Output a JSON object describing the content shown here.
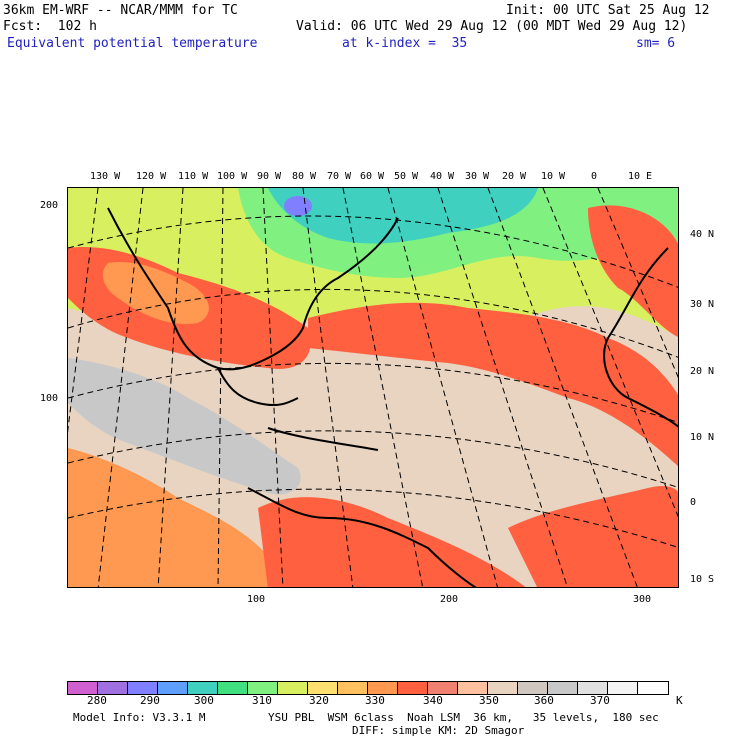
{
  "header": {
    "model_title": "36km EM-WRF -- NCAR/MMM for TC",
    "init": "Init: 00 UTC Sat 25 Aug 12",
    "forecast": "Fcst:  102 h",
    "valid": "Valid: 06 UTC Wed 29 Aug 12 (00 MDT Wed 29 Aug 12)",
    "field": "Equivalent potential temperature",
    "level": "at k-index =  35",
    "smoothing": "sm= 6"
  },
  "map": {
    "lon_labels": [
      "130 W",
      "120 W",
      "110 W",
      "100 W",
      "90 W",
      "80 W",
      "70 W",
      "60 W",
      "50 W",
      "40 W",
      "30 W",
      "20 W",
      "10 W",
      "0",
      "10 E"
    ],
    "lat_labels": [
      "40 N",
      "30 N",
      "20 N",
      "10 N",
      "0",
      "10 S"
    ],
    "y_grid_labels": [
      "200",
      "100"
    ],
    "x_grid_labels": [
      "100",
      "200",
      "300"
    ]
  },
  "colorbar": {
    "labels": [
      "280",
      "290",
      "300",
      "310",
      "320",
      "330",
      "340",
      "350",
      "360",
      "370"
    ],
    "unit": "K",
    "colors": [
      "#d060d0",
      "#a070e0",
      "#7f7fff",
      "#5fa0ff",
      "#40d0c0",
      "#40e080",
      "#80f080",
      "#d8f060",
      "#ffe070",
      "#ffc060",
      "#ff9850",
      "#ff6040",
      "#f08070",
      "#ffc0a0",
      "#e8d4c0",
      "#d0c8c0",
      "#c8c8c8",
      "#e0e0e0",
      "#f4f4f4",
      "#ffffff"
    ]
  },
  "footer": {
    "model_info": "Model Info: V3.3.1 M",
    "physics_line1": "YSU PBL  WSM 6class  Noah LSM  36 km,   35 levels,  180 sec",
    "physics_line2": "DIFF: simple KM: 2D Smagor"
  },
  "chart_data": {
    "type": "heatmap",
    "title": "Equivalent potential temperature",
    "colorbar_label_values": [
      280,
      290,
      300,
      310,
      320,
      330,
      340,
      350,
      360,
      370
    ],
    "unit": "K"
  }
}
